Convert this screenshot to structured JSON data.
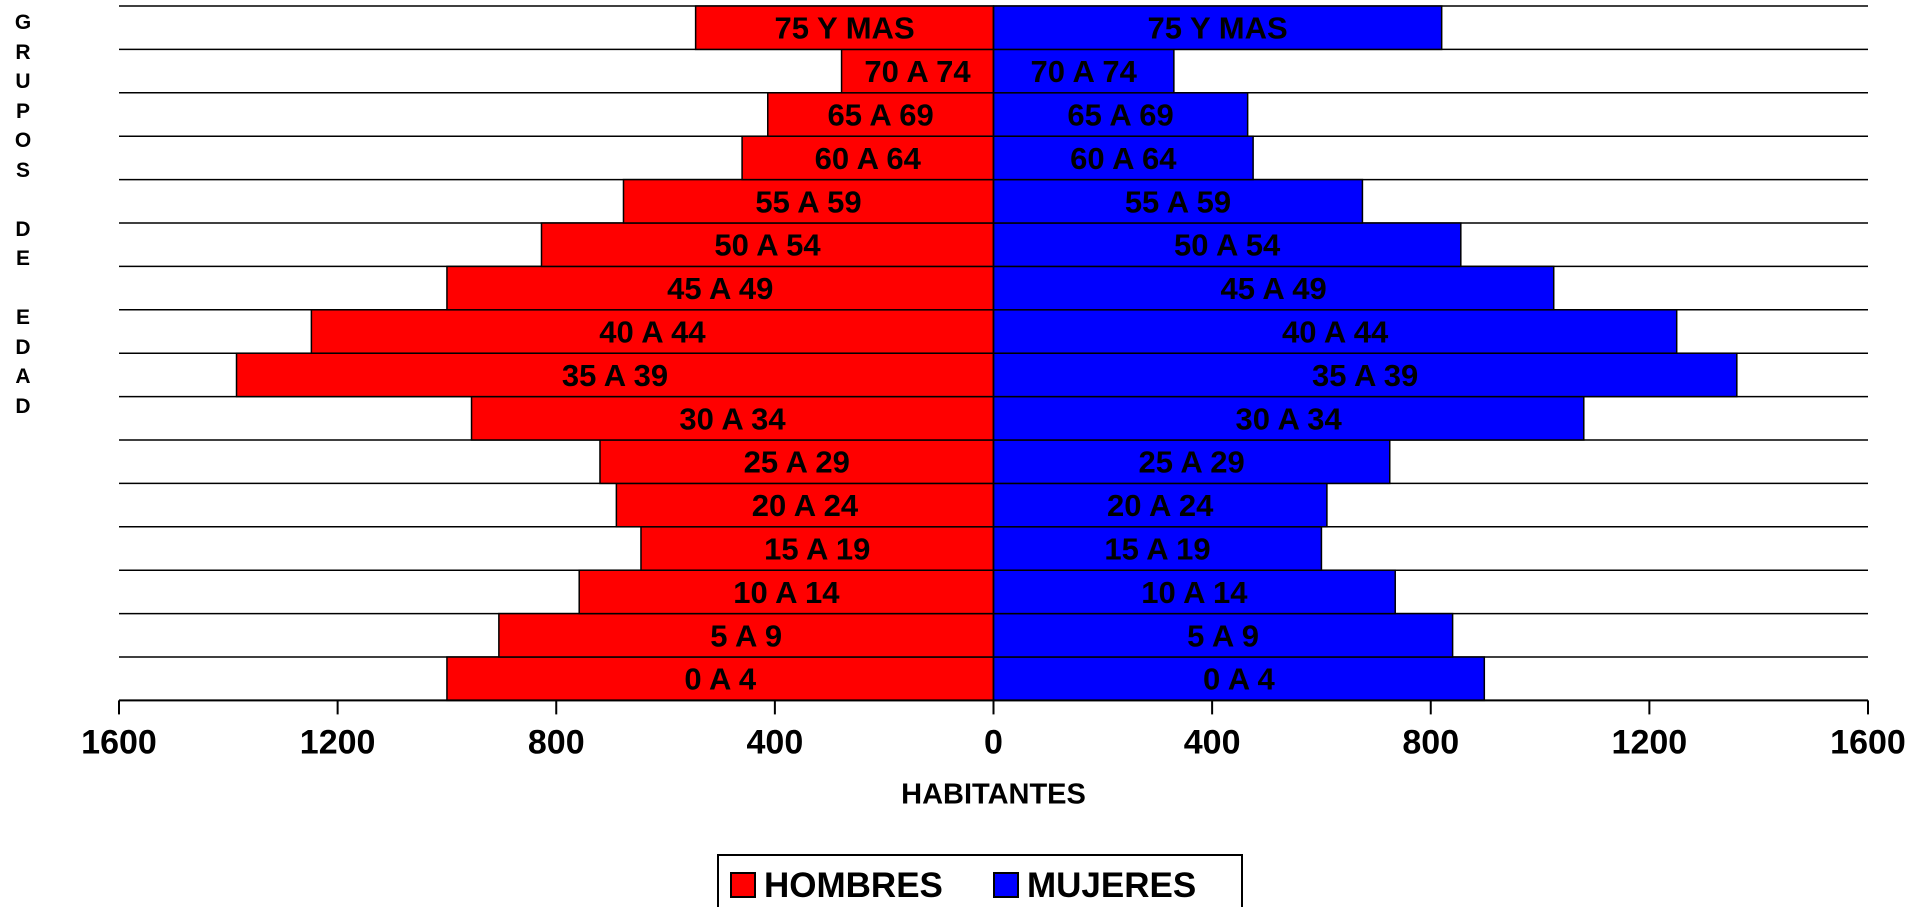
{
  "chart_data": {
    "type": "bar",
    "orientation": "horizontal",
    "subtype": "population-pyramid",
    "categories": [
      "0  A  4",
      "5  A  9",
      "10 A 14",
      "15 A 19",
      "20 A 24",
      "25 A 29",
      "30 A 34",
      "35 A 39",
      "40 A 44",
      "45 A 49",
      "50 A 54",
      "55 A 59",
      "60 A 64",
      "65 A 69",
      "70 A 74",
      "75 Y MAS"
    ],
    "series": [
      {
        "name": "HOMBRES",
        "color": "#ff0000",
        "values": [
          1000,
          905,
          758,
          645,
          690,
          720,
          955,
          1385,
          1248,
          1000,
          827,
          677,
          460,
          413,
          278,
          545
        ]
      },
      {
        "name": "MUJERES",
        "color": "#0000ff",
        "values": [
          898,
          840,
          735,
          600,
          610,
          725,
          1080,
          1360,
          1250,
          1025,
          855,
          675,
          475,
          465,
          330,
          820
        ]
      }
    ],
    "xlabel": "HABITANTES",
    "ylabel": "GRUPOS DE EDAD",
    "xlim": [
      -1600,
      1600
    ],
    "xticks": [
      -1600,
      -1200,
      -800,
      -400,
      0,
      400,
      800,
      1200,
      1600
    ],
    "xtick_labels": [
      "1600",
      "1200",
      "800",
      "400",
      "0",
      "400",
      "800",
      "1200",
      "1600"
    ],
    "grid": "horizontal",
    "legend": "bottom-center"
  }
}
